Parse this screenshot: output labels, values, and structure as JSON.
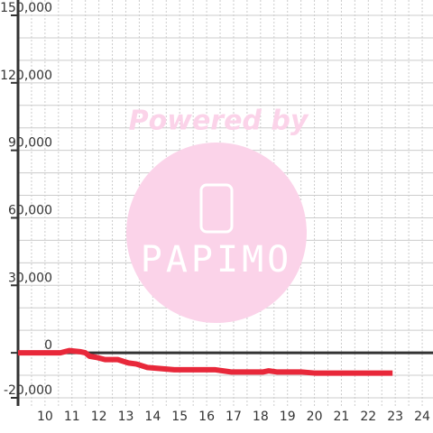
{
  "chart_data": {
    "type": "line",
    "watermark": {
      "line1": "Powered by",
      "line2": "PAPIMO"
    },
    "x": [
      9,
      10.57,
      10.9,
      11.3,
      11.5,
      11.65,
      11.9,
      12.23,
      12.7,
      13.1,
      13.4,
      13.8,
      14.3,
      14.8,
      16.3,
      16.9,
      18.1,
      18.3,
      18.6,
      19.5,
      20.0,
      22.9
    ],
    "series": [
      {
        "color": "#e8283a",
        "values": [
          0,
          0,
          1000,
          500,
          0,
          -1500,
          -2000,
          -3000,
          -3000,
          -4500,
          -5000,
          -6500,
          -7000,
          -7500,
          -7500,
          -8500,
          -8500,
          -8000,
          -8500,
          -8500,
          -9000,
          -9000
        ]
      }
    ],
    "xlim": [
      9,
      24.4
    ],
    "xticks": [
      10,
      11,
      12,
      13,
      14,
      15,
      16,
      17,
      18,
      19,
      20,
      21,
      22,
      23,
      24
    ],
    "xminorticks": [
      9.5,
      10.5,
      11.5,
      12.5,
      13.5,
      14.5,
      15.5,
      16.5,
      17.5,
      18.5,
      19.5,
      20.5,
      21.5,
      22.5,
      23.5
    ],
    "ylim": [
      -20000,
      150000
    ],
    "yticks": [
      {
        "value": -20000,
        "label": "-20,000"
      },
      0,
      {
        "value": 30000,
        "label": "30,000"
      },
      {
        "value": 60000,
        "label": "60,000"
      },
      {
        "value": 90000,
        "label": "90,000"
      },
      {
        "value": 120000,
        "label": "120,000"
      },
      {
        "value": 150000,
        "label": "150,000"
      }
    ],
    "yminorticks": [
      -10000,
      10000,
      20000,
      40000,
      50000,
      70000,
      80000,
      100000,
      110000,
      130000,
      140000
    ],
    "grid": true
  }
}
